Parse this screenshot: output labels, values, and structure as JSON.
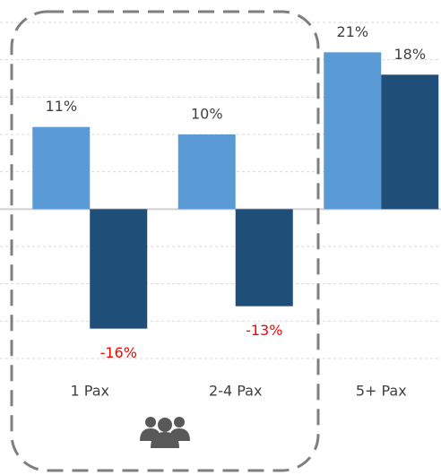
{
  "chart_data": {
    "type": "bar",
    "categories": [
      "1 Pax",
      "2-4 Pax",
      "5+ Pax"
    ],
    "series": [
      {
        "color": "#5b9bd5",
        "values": [
          11,
          10,
          21
        ],
        "value_labels": [
          "11%",
          "10%",
          "21%"
        ]
      },
      {
        "color": "#1f4e79",
        "values": [
          -16,
          -13,
          18
        ],
        "value_labels": [
          "-16%",
          "-13%",
          "18%"
        ]
      }
    ],
    "ylim": [
      -20,
      25
    ],
    "yticks": [
      -20,
      -15,
      -10,
      -5,
      0,
      5,
      10,
      15,
      20,
      25
    ],
    "grid": true,
    "negative_label_color": "#ff0000"
  }
}
